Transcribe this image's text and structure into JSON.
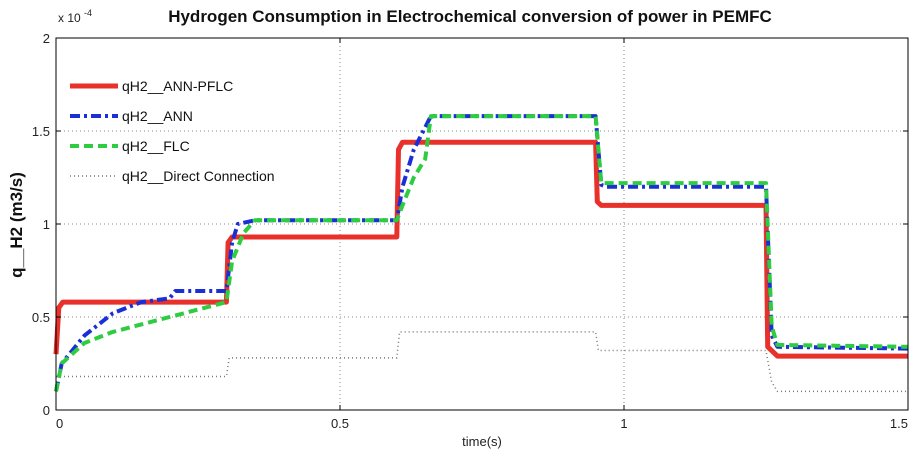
{
  "chart_data": {
    "type": "line",
    "title": "Hydrogen Consumption in Electrochemical conversion of power in PEMFC",
    "xlabel": "time(s)",
    "ylabel": "q__H2 (m3/s)",
    "y_multiplier_label": "x 10",
    "y_multiplier_exponent": "-4",
    "xlim": [
      0,
      1.5
    ],
    "ylim": [
      0,
      2
    ],
    "x_ticks": [
      0,
      0.5,
      1,
      1.5
    ],
    "x_tick_labels": [
      "0",
      "0.5",
      "1",
      "1.5"
    ],
    "y_ticks": [
      0,
      0.5,
      1,
      1.5,
      2
    ],
    "y_tick_labels": [
      "0",
      "0.5",
      "1",
      "1.5",
      "2"
    ],
    "grid": true,
    "legend_position": "top-left",
    "series": [
      {
        "name": "qH2__ANN-PFLC",
        "color": "#e8312a",
        "style": "solid",
        "x": [
          0,
          0.005,
          0.012,
          0.02,
          0.3,
          0.303,
          0.31,
          0.6,
          0.603,
          0.61,
          0.95,
          0.953,
          0.96,
          1.25,
          1.253,
          1.27,
          1.5
        ],
        "y": [
          0.3,
          0.55,
          0.58,
          0.58,
          0.58,
          0.9,
          0.93,
          0.93,
          1.4,
          1.44,
          1.44,
          1.12,
          1.1,
          1.1,
          0.34,
          0.29,
          0.29
        ]
      },
      {
        "name": "qH2__ANN",
        "color": "#1b2fd6",
        "style": "dashdot",
        "x": [
          0,
          0.01,
          0.05,
          0.1,
          0.15,
          0.2,
          0.21,
          0.3,
          0.31,
          0.32,
          0.35,
          0.6,
          0.61,
          0.63,
          0.66,
          0.95,
          0.96,
          0.97,
          1.25,
          1.26,
          1.27,
          1.5
        ],
        "y": [
          0.1,
          0.25,
          0.4,
          0.52,
          0.58,
          0.6,
          0.64,
          0.64,
          0.9,
          1.0,
          1.02,
          1.02,
          1.2,
          1.4,
          1.58,
          1.58,
          1.21,
          1.2,
          1.2,
          0.4,
          0.34,
          0.33
        ]
      },
      {
        "name": "qH2__FLC",
        "color": "#2ecc40",
        "style": "dashed",
        "x": [
          0,
          0.01,
          0.05,
          0.1,
          0.2,
          0.3,
          0.31,
          0.33,
          0.35,
          0.6,
          0.61,
          0.63,
          0.65,
          0.66,
          0.95,
          0.96,
          1.25,
          1.26,
          1.27,
          1.5
        ],
        "y": [
          0.1,
          0.25,
          0.36,
          0.42,
          0.5,
          0.58,
          0.8,
          0.95,
          1.02,
          1.02,
          1.1,
          1.25,
          1.35,
          1.58,
          1.58,
          1.22,
          1.22,
          0.45,
          0.35,
          0.34
        ]
      },
      {
        "name": "qH2__Direct Connection",
        "color": "#777777",
        "style": "dotted",
        "x": [
          0,
          0.01,
          0.3,
          0.305,
          0.6,
          0.605,
          0.95,
          0.955,
          1.25,
          1.26,
          1.27,
          1.5
        ],
        "y": [
          0.18,
          0.18,
          0.18,
          0.28,
          0.28,
          0.42,
          0.42,
          0.32,
          0.32,
          0.15,
          0.1,
          0.1
        ]
      }
    ]
  }
}
